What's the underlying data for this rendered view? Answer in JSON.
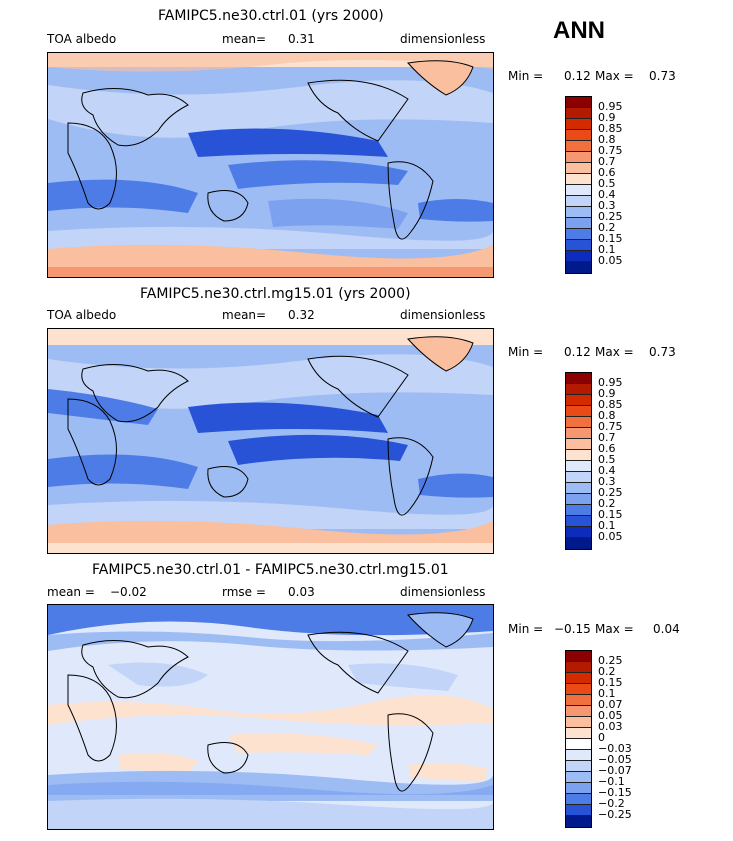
{
  "season": "ANN",
  "panels": [
    {
      "title": "FAMIPC5.ne30.ctrl.01 (yrs 2000)",
      "left_label": "TOA albedo",
      "mid_label": "mean=",
      "mid_value": "0.31",
      "units": "dimensionless",
      "min_label": "Min =",
      "min_value": "0.12",
      "max_label": "Max =",
      "max_value": "0.73",
      "levels": [
        "0.95",
        "0.9",
        "0.85",
        "0.8",
        "0.75",
        "0.7",
        "0.6",
        "0.5",
        "0.4",
        "0.3",
        "0.25",
        "0.2",
        "0.15",
        "0.1",
        "0.05"
      ],
      "colors": [
        "#8b0000",
        "#b41a00",
        "#d42a00",
        "#ea4a15",
        "#f07040",
        "#f59770",
        "#f9bf9e",
        "#fde2cf",
        "#dfe9fb",
        "#c2d4f7",
        "#9ebcf4",
        "#7ca2ef",
        "#4d7ce6",
        "#2853d6",
        "#0d2cbc",
        "#001a8c"
      ]
    },
    {
      "title": "FAMIPC5.ne30.ctrl.mg15.01 (yrs 2000)",
      "left_label": "TOA albedo",
      "mid_label": "mean=",
      "mid_value": "0.32",
      "units": "dimensionless",
      "min_label": "Min =",
      "min_value": "0.12",
      "max_label": "Max =",
      "max_value": "0.73",
      "levels": [
        "0.95",
        "0.9",
        "0.85",
        "0.8",
        "0.75",
        "0.7",
        "0.6",
        "0.5",
        "0.4",
        "0.3",
        "0.25",
        "0.2",
        "0.15",
        "0.1",
        "0.05"
      ],
      "colors": [
        "#8b0000",
        "#b41a00",
        "#d42a00",
        "#ea4a15",
        "#f07040",
        "#f59770",
        "#f9bf9e",
        "#fde2cf",
        "#dfe9fb",
        "#c2d4f7",
        "#9ebcf4",
        "#7ca2ef",
        "#4d7ce6",
        "#2853d6",
        "#0d2cbc",
        "#001a8c"
      ]
    },
    {
      "title": "FAMIPC5.ne30.ctrl.01 - FAMIPC5.ne30.ctrl.mg15.01",
      "left_label": "mean =",
      "left_value": "−0.02",
      "mid_label": "rmse =",
      "mid_value": "0.03",
      "units": "dimensionless",
      "min_label": "Min =",
      "min_value": "−0.15",
      "max_label": "Max =",
      "max_value": "0.04",
      "levels": [
        "0.25",
        "0.2",
        "0.15",
        "0.1",
        "0.07",
        "0.05",
        "0.03",
        "0",
        "−0.03",
        "−0.05",
        "−0.07",
        "−0.1",
        "−0.15",
        "−0.2",
        "−0.25"
      ],
      "colors": [
        "#8b0000",
        "#b41a00",
        "#d42a00",
        "#ea4a15",
        "#f07040",
        "#f59770",
        "#f9bf9e",
        "#fde2cf",
        "#ffffff",
        "#dfe9fb",
        "#c2d4f7",
        "#9ebcf4",
        "#7ca2ef",
        "#4d7ce6",
        "#2853d6",
        "#001a8c"
      ]
    }
  ]
}
